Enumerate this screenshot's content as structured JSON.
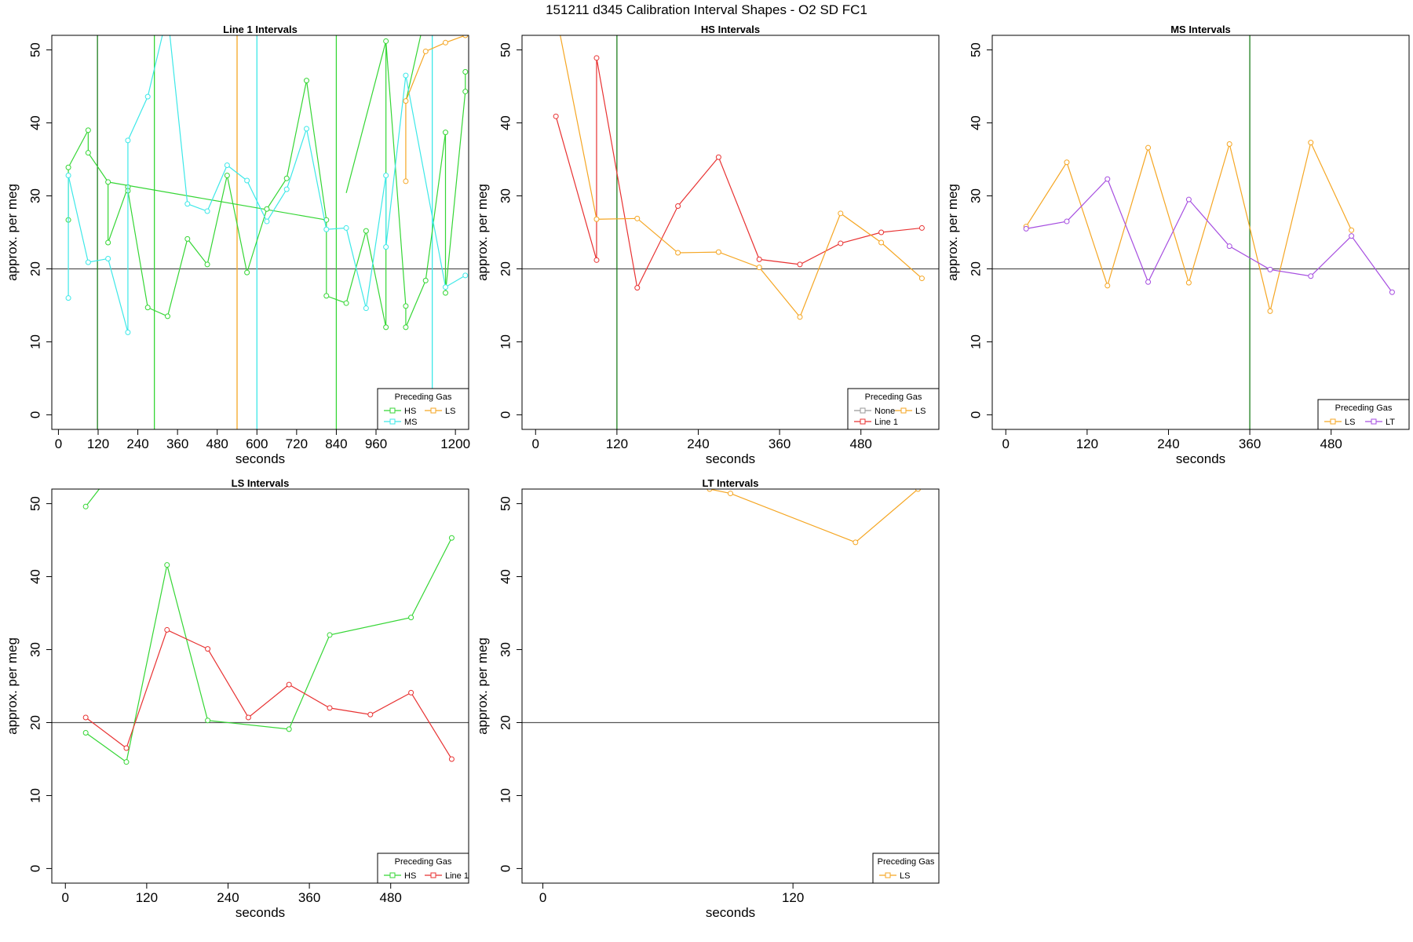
{
  "figure_title": "151211   d345   Calibration Interval Shapes - O2 SD FC1",
  "colors": {
    "HS": "#35d635",
    "MS": "#3de8e8",
    "LS": "#f5a623",
    "LT": "#a64ee0",
    "Line 1": "#e83232",
    "None": "#999999",
    "ref_line": "#555555",
    "vline_dark": "#1e7e1e"
  },
  "chart_data": [
    {
      "type": "line",
      "title": "Line 1 Intervals",
      "xlabel": "seconds",
      "ylabel": "approx. per meg",
      "xlim": [
        -20,
        1240
      ],
      "ylim": [
        -2,
        52
      ],
      "xticks": [
        0,
        120,
        240,
        360,
        480,
        600,
        720,
        840,
        960,
        1200
      ],
      "yticks": [
        0,
        10,
        20,
        30,
        40,
        50
      ],
      "hline": 20,
      "grid": false,
      "legend": {
        "title": "Preceding Gas",
        "placement": "bottom-right",
        "entries": [
          "HS",
          "LS",
          "MS"
        ],
        "ncol": 2
      },
      "vlines": [
        {
          "x": 118,
          "color": "vline_dark"
        },
        {
          "x": 290,
          "color": "HS"
        },
        {
          "x": 540,
          "color": "LS"
        },
        {
          "x": 600,
          "color": "MS"
        },
        {
          "x": 840,
          "color": "HS"
        },
        {
          "x": 1130,
          "color": "MS"
        }
      ],
      "series": [
        {
          "name": "HS",
          "x": [
            30,
            30,
            90,
            90,
            150,
            150,
            210,
            210,
            270,
            330,
            390,
            450,
            510,
            570,
            630,
            690,
            750,
            810,
            810,
            870,
            930,
            990,
            990,
            1050,
            1050,
            1110,
            1170,
            1170,
            1230,
            1230
          ],
          "y": [
            26.7,
            33.9,
            39.0,
            35.9,
            31.9,
            23.6,
            31.2,
            30.7,
            14.7,
            13.5,
            24.1,
            20.6,
            32.8,
            19.5,
            28.2,
            32.4,
            45.8,
            26.7,
            16.3,
            15.3,
            25.2,
            12.0,
            51.2,
            14.9,
            12.0,
            18.4,
            38.7,
            16.7,
            44.3,
            47.0
          ],
          "extra_segments": [
            [
              [
                870,
                30.4
              ],
              [
                990,
                51.2
              ]
            ],
            [
              [
                150,
                31.9
              ],
              [
                810,
                26.7
              ]
            ],
            [
              [
                1050,
                42.9
              ],
              [
                1110,
                55.0
              ]
            ]
          ]
        },
        {
          "name": "MS",
          "x": [
            30,
            30,
            90,
            150,
            210,
            210,
            270,
            330,
            390,
            450,
            510,
            570,
            630,
            690,
            750,
            810,
            870,
            930,
            990,
            990,
            1050,
            1170,
            1230
          ],
          "y": [
            16.0,
            32.8,
            20.9,
            21.4,
            11.3,
            37.6,
            43.6,
            55.0,
            28.9,
            27.9,
            34.2,
            32.1,
            26.5,
            30.9,
            39.2,
            25.4,
            25.6,
            14.6,
            32.8,
            23.0,
            46.5,
            17.5,
            19.1
          ]
        },
        {
          "name": "LS",
          "x": [
            1050,
            1050,
            1110,
            1170,
            1230
          ],
          "y": [
            32.0,
            43.0,
            49.8,
            51.0,
            52.0
          ]
        }
      ]
    },
    {
      "type": "line",
      "title": "HS Intervals",
      "xlabel": "seconds",
      "ylabel": "approx. per meg",
      "xlim": [
        -20,
        595
      ],
      "ylim": [
        -2,
        52
      ],
      "xticks": [
        0,
        120,
        240,
        360,
        480
      ],
      "yticks": [
        0,
        10,
        20,
        30,
        40,
        50
      ],
      "hline": 20,
      "grid": false,
      "legend": {
        "title": "Preceding Gas",
        "placement": "bottom-right",
        "entries": [
          "None",
          "LS",
          "Line 1"
        ],
        "ncol": 2
      },
      "vlines": [
        {
          "x": 120,
          "color": "vline_dark"
        }
      ],
      "series": [
        {
          "name": "Line 1",
          "x": [
            30,
            90,
            90,
            150,
            210,
            270,
            330,
            390,
            450,
            510,
            570
          ],
          "y": [
            40.9,
            21.2,
            48.9,
            17.4,
            28.6,
            35.3,
            21.3,
            20.6,
            23.5,
            25.0,
            25.6
          ]
        },
        {
          "name": "LS",
          "x": [
            30,
            90,
            150,
            210,
            270,
            330,
            390,
            450,
            510,
            570
          ],
          "y": [
            55.0,
            26.8,
            26.9,
            22.2,
            22.3,
            20.2,
            13.4,
            27.6,
            23.6,
            18.7
          ]
        }
      ]
    },
    {
      "type": "line",
      "title": "MS Intervals",
      "xlabel": "seconds",
      "ylabel": "approx. per meg",
      "xlim": [
        -20,
        595
      ],
      "ylim": [
        -2,
        52
      ],
      "xticks": [
        0,
        120,
        240,
        360,
        480
      ],
      "yticks": [
        0,
        10,
        20,
        30,
        40,
        50
      ],
      "hline": 20,
      "grid": false,
      "legend": {
        "title": "Preceding Gas",
        "placement": "bottom-right",
        "entries": [
          "LS",
          "LT"
        ],
        "ncol": 2
      },
      "vlines": [
        {
          "x": 360,
          "color": "vline_dark"
        }
      ],
      "series": [
        {
          "name": "LS",
          "x": [
            30,
            90,
            150,
            210,
            270,
            330,
            390,
            450,
            510
          ],
          "y": [
            25.8,
            34.6,
            17.7,
            36.6,
            18.1,
            37.1,
            14.2,
            37.3,
            25.3
          ]
        },
        {
          "name": "LT",
          "x": [
            30,
            90,
            150,
            210,
            270,
            330,
            390,
            450,
            510,
            570
          ],
          "y": [
            25.5,
            26.5,
            32.3,
            18.2,
            29.5,
            23.1,
            19.9,
            19.0,
            24.5,
            16.8
          ]
        }
      ]
    },
    {
      "type": "line",
      "title": "LS Intervals",
      "xlabel": "seconds",
      "ylabel": "approx. per meg",
      "xlim": [
        -20,
        595
      ],
      "ylim": [
        -2,
        52
      ],
      "xticks": [
        0,
        120,
        240,
        360,
        480
      ],
      "yticks": [
        0,
        10,
        20,
        30,
        40,
        50
      ],
      "hline": 20,
      "grid": false,
      "legend": {
        "title": "Preceding Gas",
        "placement": "bottom-right",
        "entries": [
          "HS",
          "Line 1"
        ],
        "ncol": 2
      },
      "vlines": [],
      "series": [
        {
          "name": "HS",
          "x": [
            30,
            90,
            150,
            210,
            330,
            390,
            510,
            570
          ],
          "y": [
            18.6,
            14.6,
            41.6,
            20.3,
            19.1,
            32.0,
            34.4,
            45.3
          ],
          "extra_segments": [
            [
              [
                30,
                49.6
              ],
              [
                50,
                52.0
              ]
            ]
          ],
          "extra_points": [
            [
              30,
              49.6
            ]
          ]
        },
        {
          "name": "Line 1",
          "x": [
            30,
            90,
            150,
            210,
            270,
            330,
            390,
            450,
            510,
            570
          ],
          "y": [
            20.7,
            16.5,
            32.7,
            30.1,
            20.7,
            25.2,
            22.0,
            21.1,
            24.1,
            15.0
          ]
        }
      ]
    },
    {
      "type": "line",
      "title": "LT Intervals",
      "xlabel": "seconds",
      "ylabel": "approx. per meg",
      "xlim": [
        -10,
        190
      ],
      "ylim": [
        -2,
        52
      ],
      "xticks": [
        0,
        120
      ],
      "yticks": [
        0,
        10,
        20,
        30,
        40,
        50
      ],
      "hline": 20,
      "grid": false,
      "legend": {
        "title": "Preceding Gas",
        "placement": "bottom-right",
        "entries": [
          "LS"
        ],
        "ncol": 1
      },
      "vlines": [],
      "series": [
        {
          "name": "LS",
          "x": [
            80,
            90,
            150,
            180
          ],
          "y": [
            52.0,
            51.4,
            44.7,
            52.0
          ]
        }
      ]
    }
  ]
}
